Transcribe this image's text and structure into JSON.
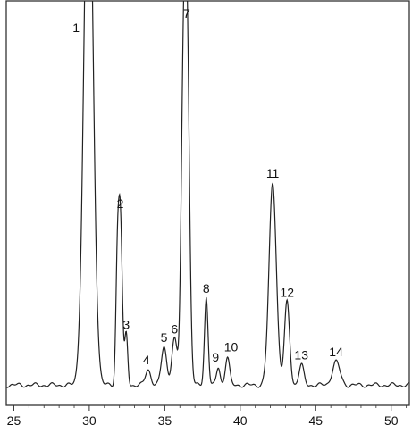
{
  "chart_data": {
    "type": "line",
    "title": "",
    "xlabel": "",
    "ylabel": "",
    "xlim": [
      24.5,
      51.2
    ],
    "ylim": [
      0,
      100
    ],
    "grid": false,
    "legend": "none",
    "x_ticks": [
      25,
      30,
      35,
      40,
      45,
      50
    ],
    "x_tick_labels": [
      "25",
      "30",
      "35",
      "40",
      "45",
      "50"
    ],
    "line_color": "#222222",
    "baseline_y": 5,
    "peaks": [
      {
        "label": "1",
        "x": 29.95,
        "height": 140,
        "width": 0.3
      },
      {
        "label": "2",
        "x": 32.05,
        "height": 42.5,
        "width": 0.13
      },
      {
        "label": "3",
        "x": 32.45,
        "height": 12.5,
        "width": 0.1
      },
      {
        "label": "4",
        "x": 33.9,
        "height": 3.8,
        "width": 0.18
      },
      {
        "label": "5",
        "x": 34.95,
        "height": 9.3,
        "width": 0.18
      },
      {
        "label": "6",
        "x": 35.65,
        "height": 11.5,
        "width": 0.18
      },
      {
        "label": "7",
        "x": 36.45,
        "height": 94,
        "width": 0.17
      },
      {
        "label": "8",
        "x": 37.75,
        "height": 21.5,
        "width": 0.12
      },
      {
        "label": "9",
        "x": 38.55,
        "height": 4.5,
        "width": 0.12
      },
      {
        "label": "10",
        "x": 39.15,
        "height": 7.0,
        "width": 0.14
      },
      {
        "label": "11",
        "x": 42.15,
        "height": 50,
        "width": 0.24
      },
      {
        "label": "12",
        "x": 43.1,
        "height": 20.5,
        "width": 0.17
      },
      {
        "label": "13",
        "x": 44.05,
        "height": 5.0,
        "width": 0.16
      },
      {
        "label": "14",
        "x": 46.35,
        "height": 5.8,
        "width": 0.25
      }
    ],
    "shoulders": [
      {
        "x": 31.85,
        "height": 24,
        "width": 0.1
      },
      {
        "x": 36.2,
        "height": 52,
        "width": 0.14
      }
    ]
  }
}
